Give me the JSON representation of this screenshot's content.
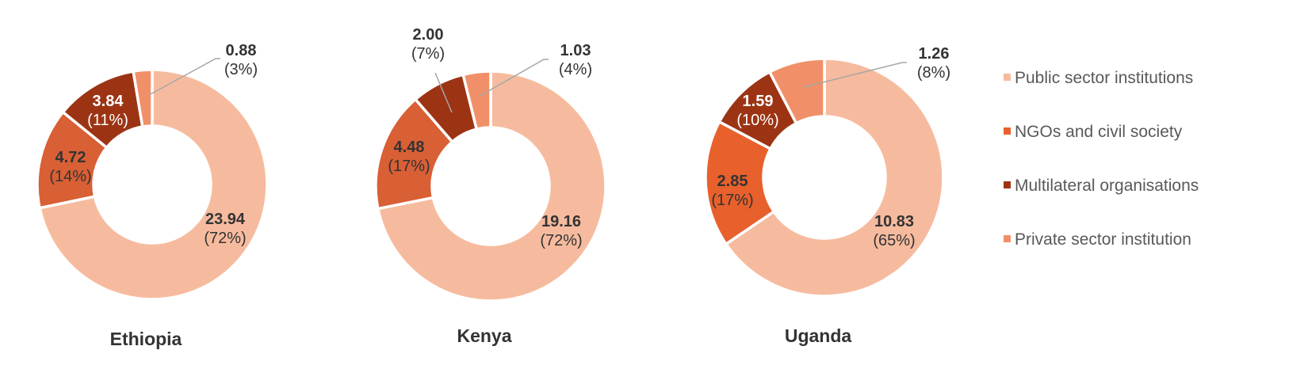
{
  "chart_data": {
    "type": "pie",
    "legend_position": "right",
    "categories": [
      "Public sector institutions",
      "NGOs and civil society",
      "Multilateral organisations",
      "Private sector institution"
    ],
    "colors": [
      "#f6bb9e",
      "#e8602c",
      "#9c3414",
      "#f19068"
    ],
    "charts": [
      {
        "title": "Ethiopia",
        "colors": [
          "#f6bb9e",
          "#d95f35",
          "#9c3414",
          "#f19068"
        ],
        "slices": [
          {
            "value": 23.94,
            "value_label": "23.94",
            "pct_label": "(72%)"
          },
          {
            "value": 4.72,
            "value_label": "4.72",
            "pct_label": "(14%)"
          },
          {
            "value": 3.84,
            "value_label": "3.84",
            "pct_label": "(11%)"
          },
          {
            "value": 0.88,
            "value_label": "0.88",
            "pct_label": "(3%)"
          }
        ]
      },
      {
        "title": "Kenya",
        "colors": [
          "#f6bb9e",
          "#d95f35",
          "#9c3414",
          "#f19068"
        ],
        "slices": [
          {
            "value": 19.16,
            "value_label": "19.16",
            "pct_label": "(72%)"
          },
          {
            "value": 4.48,
            "value_label": "4.48",
            "pct_label": "(17%)"
          },
          {
            "value": 2.0,
            "value_label": "2.00",
            "pct_label": "(7%)"
          },
          {
            "value": 1.03,
            "value_label": "1.03",
            "pct_label": "(4%)"
          }
        ]
      },
      {
        "title": "Uganda",
        "colors": [
          "#f6bb9e",
          "#e8602c",
          "#9c3414",
          "#f19068"
        ],
        "slices": [
          {
            "value": 10.83,
            "value_label": "10.83",
            "pct_label": "(65%)"
          },
          {
            "value": 2.85,
            "value_label": "2.85",
            "pct_label": "(17%)"
          },
          {
            "value": 1.59,
            "value_label": "1.59",
            "pct_label": "(10%)"
          },
          {
            "value": 1.26,
            "value_label": "1.26",
            "pct_label": "(8%)"
          }
        ]
      }
    ]
  }
}
